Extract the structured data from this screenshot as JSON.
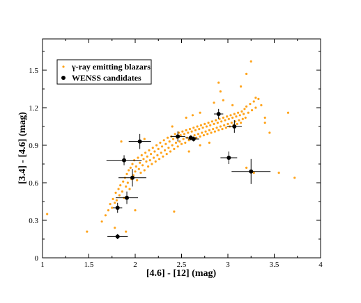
{
  "chart_data": {
    "type": "scatter",
    "title": "",
    "xlabel": "[4.6] - [12] (mag)",
    "ylabel": "[3.4] - [4.6] (mag)",
    "xlim": [
      1,
      4
    ],
    "ylim": [
      0,
      1.75
    ],
    "x_ticks": [
      1,
      1.5,
      2,
      2.5,
      3,
      3.5,
      4
    ],
    "x_tick_labels": [
      "1",
      "1.5",
      "2",
      "2.5",
      "3",
      "3.5",
      "4"
    ],
    "y_ticks": [
      0,
      0.3,
      0.6,
      0.9,
      1.2,
      1.5
    ],
    "y_tick_labels": [
      "0",
      "0.3",
      "0.6",
      "0.9",
      "1.2",
      "1.5"
    ],
    "grid": false,
    "legend_position": "top-left",
    "colors": {
      "blazars": "#ffa31a",
      "candidates": "#000000"
    },
    "series": [
      {
        "name": "γ-ray emitting blazars",
        "marker": "small-dot",
        "points": [
          [
            1.05,
            0.35
          ],
          [
            1.48,
            0.21
          ],
          [
            1.64,
            0.29
          ],
          [
            1.68,
            0.34
          ],
          [
            1.71,
            0.38
          ],
          [
            1.73,
            0.43
          ],
          [
            1.75,
            0.4
          ],
          [
            1.76,
            0.47
          ],
          [
            1.78,
            0.44
          ],
          [
            1.79,
            0.52
          ],
          [
            1.8,
            0.46
          ],
          [
            1.82,
            0.55
          ],
          [
            1.83,
            0.5
          ],
          [
            1.84,
            0.58
          ],
          [
            1.86,
            0.53
          ],
          [
            1.87,
            0.61
          ],
          [
            1.88,
            0.48
          ],
          [
            1.89,
            0.64
          ],
          [
            1.9,
            0.57
          ],
          [
            1.91,
            0.67
          ],
          [
            1.92,
            0.6
          ],
          [
            1.93,
            0.7
          ],
          [
            1.94,
            0.55
          ],
          [
            1.95,
            0.72
          ],
          [
            1.96,
            0.63
          ],
          [
            1.97,
            0.75
          ],
          [
            1.98,
            0.66
          ],
          [
            1.99,
            0.78
          ],
          [
            2.0,
            0.69
          ],
          [
            2.01,
            0.73
          ],
          [
            2.02,
            0.62
          ],
          [
            2.03,
            0.8
          ],
          [
            2.04,
            0.71
          ],
          [
            2.05,
            0.76
          ],
          [
            2.06,
            0.68
          ],
          [
            2.07,
            0.82
          ],
          [
            2.08,
            0.74
          ],
          [
            2.09,
            0.79
          ],
          [
            2.1,
            0.7
          ],
          [
            2.11,
            0.84
          ],
          [
            2.12,
            0.77
          ],
          [
            2.13,
            0.81
          ],
          [
            2.14,
            0.73
          ],
          [
            2.15,
            0.86
          ],
          [
            2.16,
            0.78
          ],
          [
            2.17,
            0.83
          ],
          [
            2.18,
            0.75
          ],
          [
            2.19,
            0.88
          ],
          [
            2.2,
            0.8
          ],
          [
            2.21,
            0.85
          ],
          [
            2.22,
            0.77
          ],
          [
            2.23,
            0.9
          ],
          [
            2.24,
            0.82
          ],
          [
            2.25,
            0.87
          ],
          [
            2.26,
            0.79
          ],
          [
            2.27,
            0.92
          ],
          [
            2.28,
            0.84
          ],
          [
            2.29,
            0.89
          ],
          [
            2.3,
            0.81
          ],
          [
            2.31,
            0.94
          ],
          [
            2.32,
            0.86
          ],
          [
            2.33,
            0.91
          ],
          [
            2.34,
            0.83
          ],
          [
            2.35,
            0.96
          ],
          [
            2.36,
            0.88
          ],
          [
            2.37,
            0.93
          ],
          [
            2.38,
            0.85
          ],
          [
            2.39,
            0.97
          ],
          [
            2.4,
            0.9
          ],
          [
            2.41,
            0.95
          ],
          [
            2.42,
            0.87
          ],
          [
            2.43,
            0.99
          ],
          [
            2.44,
            0.92
          ],
          [
            2.45,
            0.96
          ],
          [
            2.46,
            0.89
          ],
          [
            2.47,
            1.0
          ],
          [
            2.48,
            0.93
          ],
          [
            2.49,
            0.98
          ],
          [
            2.5,
            0.91
          ],
          [
            2.51,
            1.01
          ],
          [
            2.52,
            0.95
          ],
          [
            2.53,
            0.99
          ],
          [
            2.54,
            0.92
          ],
          [
            2.55,
            1.02
          ],
          [
            2.56,
            0.96
          ],
          [
            2.57,
            1.0
          ],
          [
            2.58,
            0.94
          ],
          [
            2.59,
            1.03
          ],
          [
            2.6,
            0.97
          ],
          [
            2.61,
            1.01
          ],
          [
            2.62,
            0.95
          ],
          [
            2.63,
            1.04
          ],
          [
            2.64,
            0.98
          ],
          [
            2.65,
            1.02
          ],
          [
            2.66,
            0.96
          ],
          [
            2.67,
            1.05
          ],
          [
            2.68,
            0.99
          ],
          [
            2.69,
            1.03
          ],
          [
            2.7,
            0.97
          ],
          [
            2.71,
            1.06
          ],
          [
            2.72,
            1.0
          ],
          [
            2.73,
            1.04
          ],
          [
            2.74,
            0.98
          ],
          [
            2.75,
            1.07
          ],
          [
            2.76,
            1.01
          ],
          [
            2.77,
            1.05
          ],
          [
            2.78,
            0.99
          ],
          [
            2.79,
            1.08
          ],
          [
            2.8,
            1.02
          ],
          [
            2.81,
            1.06
          ],
          [
            2.82,
            1.0
          ],
          [
            2.83,
            1.09
          ],
          [
            2.84,
            1.03
          ],
          [
            2.85,
            1.07
          ],
          [
            2.86,
            1.01
          ],
          [
            2.87,
            1.1
          ],
          [
            2.88,
            1.04
          ],
          [
            2.89,
            1.08
          ],
          [
            2.9,
            1.02
          ],
          [
            2.91,
            1.11
          ],
          [
            2.92,
            1.05
          ],
          [
            2.93,
            1.09
          ],
          [
            2.94,
            1.03
          ],
          [
            2.95,
            1.12
          ],
          [
            2.96,
            1.06
          ],
          [
            2.97,
            1.1
          ],
          [
            2.98,
            1.04
          ],
          [
            2.99,
            1.13
          ],
          [
            3.0,
            1.07
          ],
          [
            3.01,
            1.11
          ],
          [
            3.02,
            1.05
          ],
          [
            3.03,
            1.14
          ],
          [
            3.04,
            1.08
          ],
          [
            3.05,
            1.12
          ],
          [
            3.06,
            1.06
          ],
          [
            3.07,
            1.15
          ],
          [
            3.08,
            1.09
          ],
          [
            3.09,
            1.13
          ],
          [
            3.1,
            1.07
          ],
          [
            3.11,
            1.16
          ],
          [
            3.12,
            1.1
          ],
          [
            3.13,
            1.14
          ],
          [
            3.14,
            1.08
          ],
          [
            3.15,
            1.17
          ],
          [
            3.16,
            1.11
          ],
          [
            3.17,
            1.15
          ],
          [
            3.18,
            1.19
          ],
          [
            3.19,
            1.12
          ],
          [
            3.2,
            1.21
          ],
          [
            3.22,
            1.16
          ],
          [
            3.24,
            1.23
          ],
          [
            3.26,
            1.18
          ],
          [
            3.28,
            1.25
          ],
          [
            3.3,
            1.2
          ],
          [
            3.33,
            1.27
          ],
          [
            3.36,
            1.22
          ],
          [
            3.4,
            1.12
          ],
          [
            3.45,
            1.0
          ],
          [
            3.55,
            0.68
          ],
          [
            3.65,
            1.16
          ],
          [
            3.72,
            0.64
          ],
          [
            3.3,
            1.28
          ],
          [
            3.14,
            1.37
          ],
          [
            3.2,
            1.47
          ],
          [
            3.25,
            1.57
          ],
          [
            2.92,
            1.33
          ],
          [
            2.9,
            1.4
          ],
          [
            2.1,
            0.95
          ],
          [
            1.85,
            0.93
          ],
          [
            1.9,
            0.21
          ],
          [
            1.78,
            0.24
          ],
          [
            2.42,
            0.37
          ],
          [
            2.0,
            0.38
          ],
          [
            2.7,
            0.9
          ],
          [
            3.2,
            0.72
          ],
          [
            3.28,
            0.68
          ],
          [
            2.55,
            1.12
          ],
          [
            2.62,
            1.14
          ],
          [
            2.7,
            1.16
          ],
          [
            2.85,
            1.24
          ],
          [
            2.95,
            1.26
          ],
          [
            3.05,
            1.22
          ],
          [
            2.4,
            1.05
          ],
          [
            2.58,
            0.85
          ],
          [
            2.8,
            0.92
          ],
          [
            3.4,
            1.08
          ]
        ]
      },
      {
        "name": "WENSS candidates",
        "marker": "large-dot-with-errorbars",
        "points": [
          {
            "x": 1.81,
            "y": 0.17,
            "xerr": 0.11,
            "yerr": 0.02
          },
          {
            "x": 1.81,
            "y": 0.4,
            "xerr": 0.05,
            "yerr": 0.04
          },
          {
            "x": 1.91,
            "y": 0.48,
            "xerr": 0.12,
            "yerr": 0.05
          },
          {
            "x": 1.97,
            "y": 0.64,
            "xerr": 0.15,
            "yerr": 0.07
          },
          {
            "x": 1.88,
            "y": 0.78,
            "xerr": 0.19,
            "yerr": 0.04
          },
          {
            "x": 2.05,
            "y": 0.93,
            "xerr": 0.12,
            "yerr": 0.06
          },
          {
            "x": 2.46,
            "y": 0.97,
            "xerr": 0.08,
            "yerr": 0.04
          },
          {
            "x": 2.6,
            "y": 0.96,
            "xerr": 0.06,
            "yerr": 0.02
          },
          {
            "x": 2.63,
            "y": 0.95,
            "xerr": 0.06,
            "yerr": 0.02
          },
          {
            "x": 2.9,
            "y": 1.15,
            "xerr": 0.05,
            "yerr": 0.04
          },
          {
            "x": 3.07,
            "y": 1.05,
            "xerr": 0.08,
            "yerr": 0.05
          },
          {
            "x": 3.01,
            "y": 0.8,
            "xerr": 0.09,
            "yerr": 0.05
          },
          {
            "x": 3.25,
            "y": 0.69,
            "xerr": 0.21,
            "yerr": 0.1
          }
        ]
      }
    ]
  }
}
